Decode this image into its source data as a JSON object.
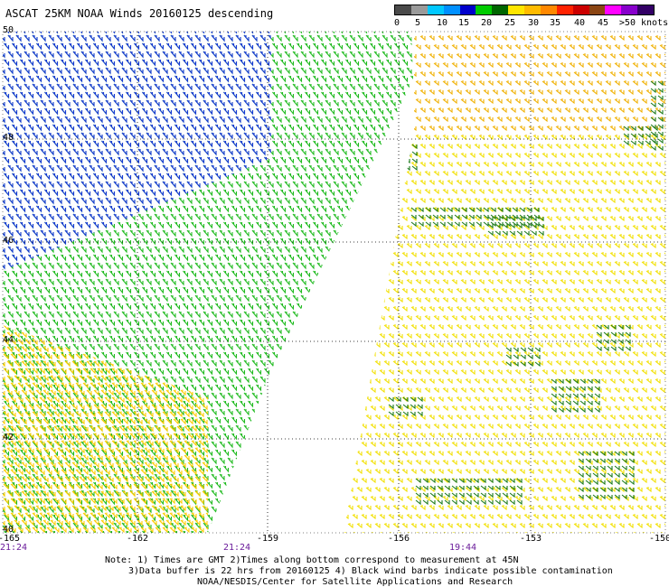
{
  "title": "ASCAT 25KM NOAA Winds 20160125 descending",
  "colorbar": {
    "labels": [
      "0",
      "5",
      "10",
      "15",
      "20",
      "25",
      "30",
      "35",
      "40",
      "45",
      ">50 knots"
    ],
    "colors": [
      "#4a4a4a",
      "#9a9a9a",
      "#00c8ff",
      "#0090ff",
      "#0000cc",
      "#00cc00",
      "#006600",
      "#ffe600",
      "#ffbb00",
      "#ff8800",
      "#ff2200",
      "#cc0000",
      "#8b4513",
      "#ff00ff",
      "#8800cc",
      "#330066"
    ]
  },
  "lat_labels": [
    "50",
    "48",
    "46",
    "44",
    "42",
    "40"
  ],
  "lon_labels": [
    "-165",
    "-162",
    "-159",
    "-156",
    "-153",
    "-150"
  ],
  "time_labels": [
    "21:24",
    "21:24",
    "19:44"
  ],
  "notes": {
    "line1": "Note: 1) Times are GMT 2)Times along bottom correspond to measurement at 45N",
    "line2": "3)Data buffer is 22 hrs from 20160125 4) Black wind barbs indicate possible contamination",
    "line3": "NOAA/NESDIS/Center for Satellite Applications and Research"
  }
}
